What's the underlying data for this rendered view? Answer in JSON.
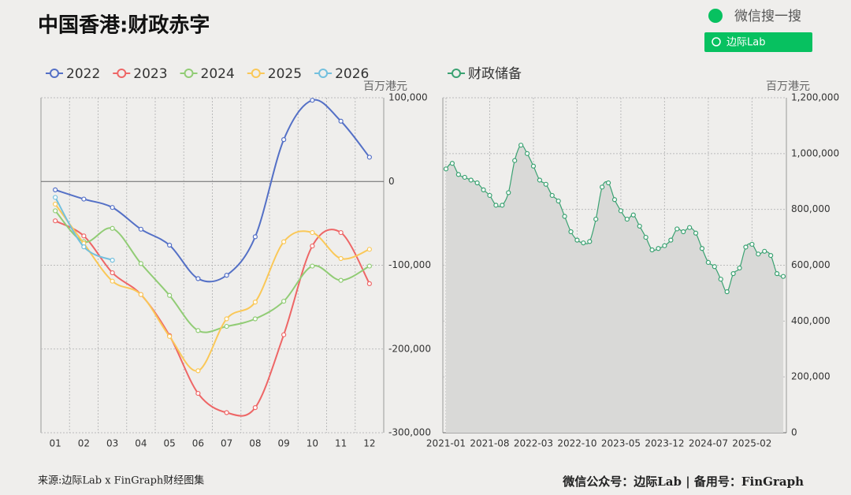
{
  "header": {
    "title": "中国香港:财政赤字",
    "search_hint": "微信搜一搜",
    "search_box": "边际Lab"
  },
  "footer": {
    "source": "来源:边际Lab x FinGraph财经图集",
    "right": "微信公众号：边际Lab  |  备用号：FinGraph"
  },
  "chart_data": [
    {
      "type": "line",
      "y_axis_label": "百万港元",
      "categories": [
        "01",
        "02",
        "03",
        "04",
        "05",
        "06",
        "07",
        "08",
        "09",
        "10",
        "11",
        "12"
      ],
      "ylim": [
        -300000,
        100000
      ],
      "yticks": [
        {
          "value": 100000,
          "label": "100,000"
        },
        0,
        {
          "value": -100000,
          "label": "-100,000"
        },
        {
          "value": -200000,
          "label": "-200,000"
        },
        {
          "value": -300000,
          "label": "-300,000"
        }
      ],
      "series": [
        {
          "name": "2022",
          "color": "#5470c6",
          "values": [
            -10000,
            -21000,
            -31000,
            -57000,
            -76000,
            -116000,
            -112000,
            -66000,
            50000,
            97000,
            72000,
            29000
          ]
        },
        {
          "name": "2023",
          "color": "#ee6666",
          "values": [
            -47000,
            -65000,
            -109000,
            -135000,
            -184000,
            -253000,
            -276000,
            -270000,
            -183000,
            -77000,
            -61000,
            -122000
          ]
        },
        {
          "name": "2024",
          "color": "#91cc75",
          "values": [
            -35000,
            -72000,
            -56000,
            -98000,
            -136000,
            -178000,
            -173000,
            -164000,
            -143000,
            -101000,
            -118000,
            -101000
          ]
        },
        {
          "name": "2025",
          "color": "#fac858",
          "values": [
            -27000,
            -74000,
            -119000,
            -135000,
            -185000,
            -226000,
            -164000,
            -144000,
            -72000,
            -61000,
            -92000,
            -81000
          ]
        },
        {
          "name": "2026",
          "color": "#73c0de",
          "values": [
            -19000,
            -78000,
            -94000,
            null,
            null,
            null,
            null,
            null,
            null,
            null,
            null,
            null
          ]
        }
      ]
    },
    {
      "type": "area",
      "y_axis_label": "百万港元",
      "categories": [
        "2021-01",
        null,
        null,
        null,
        null,
        null,
        null,
        "2021-08",
        null,
        null,
        null,
        null,
        null,
        null,
        "2022-03",
        null,
        null,
        null,
        null,
        null,
        null,
        "2022-10",
        null,
        null,
        null,
        null,
        null,
        null,
        "2023-05",
        null,
        null,
        null,
        null,
        null,
        null,
        "2023-12",
        null,
        null,
        null,
        null,
        null,
        null,
        "2024-07",
        null,
        null,
        null,
        null,
        null,
        null,
        "2025-02",
        null,
        null,
        null,
        null,
        null
      ],
      "ylim": [
        0,
        1200000
      ],
      "yticks": [
        0,
        {
          "value": 200000,
          "label": "200,000"
        },
        {
          "value": 400000,
          "label": "400,000"
        },
        {
          "value": 600000,
          "label": "600,000"
        },
        {
          "value": 800000,
          "label": "800,000"
        },
        {
          "value": 1000000,
          "label": "1,000,000"
        },
        {
          "value": 1200000,
          "label": "1,200,000"
        }
      ],
      "series": [
        {
          "name": "财政储备",
          "color": "#3ba272",
          "values": [
            945000,
            965000,
            925000,
            915000,
            905000,
            895000,
            870000,
            850000,
            815000,
            815000,
            860000,
            975000,
            1030000,
            1000000,
            955000,
            905000,
            890000,
            850000,
            830000,
            775000,
            720000,
            690000,
            680000,
            685000,
            765000,
            880000,
            895000,
            835000,
            795000,
            765000,
            780000,
            740000,
            700000,
            655000,
            660000,
            670000,
            690000,
            730000,
            720000,
            735000,
            715000,
            660000,
            610000,
            595000,
            550000,
            505000,
            570000,
            590000,
            665000,
            675000,
            640000,
            650000,
            635000,
            570000,
            560000
          ]
        }
      ]
    }
  ]
}
